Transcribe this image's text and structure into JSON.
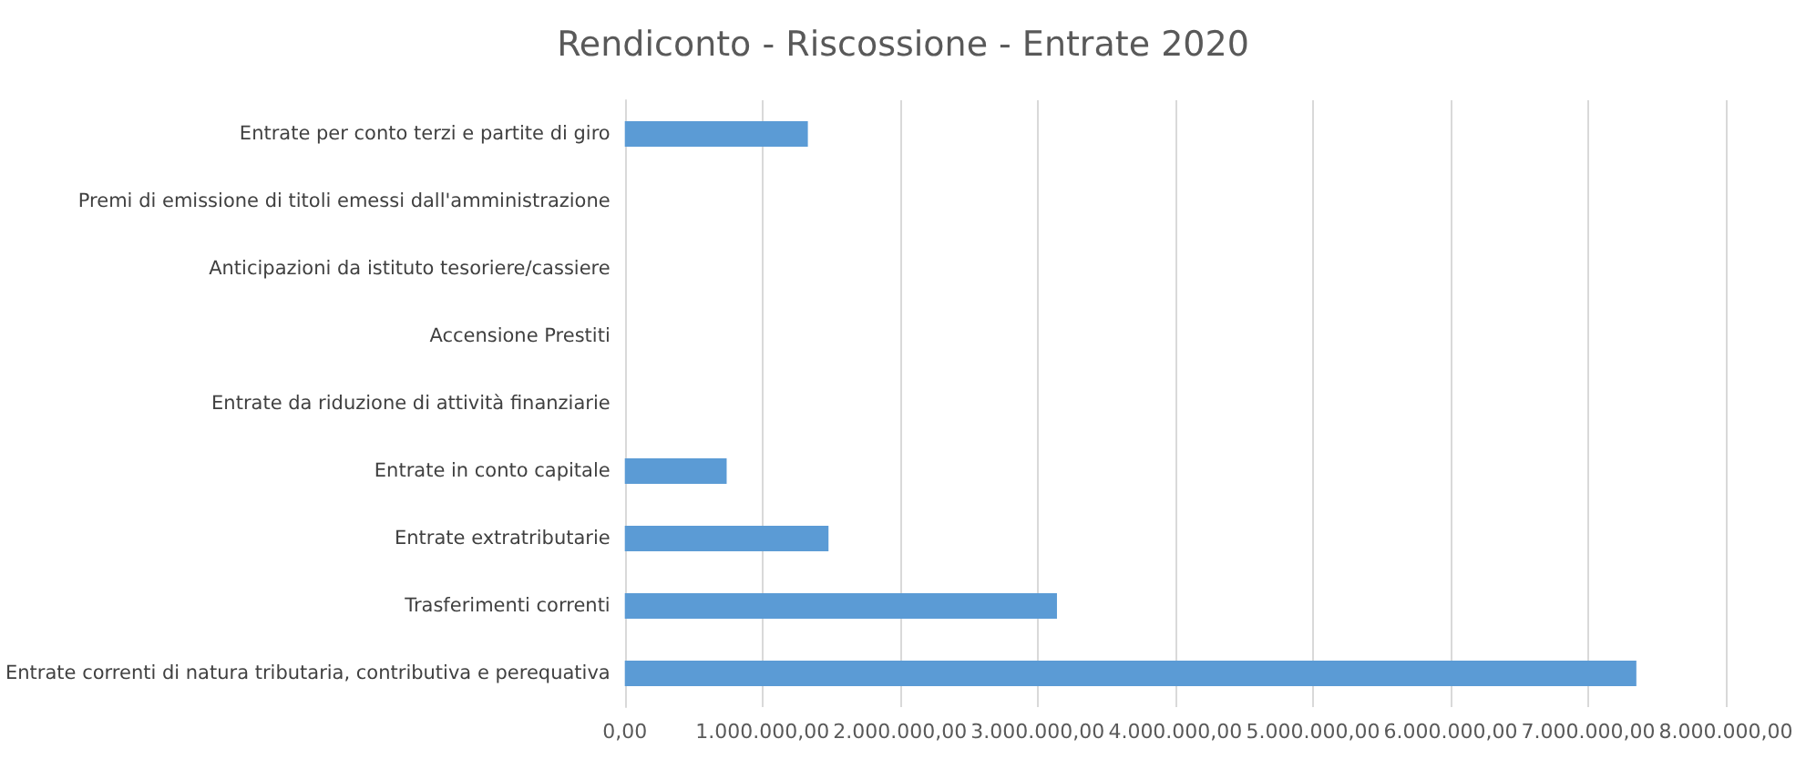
{
  "chart_data": {
    "type": "bar",
    "orientation": "horizontal",
    "title": "Rendiconto - Riscossione - Entrate 2020",
    "categories": [
      "Entrate per conto terzi e partite di giro",
      "Premi di emissione di titoli emessi dall'amministrazione",
      "Anticipazioni da istituto tesoriere/cassiere",
      "Accensione Prestiti",
      "Entrate da riduzione di attività finanziarie",
      "Entrate in conto capitale",
      "Entrate extratributarie",
      "Trasferimenti correnti",
      "Entrate correnti di natura tributaria, contributiva e perequativa"
    ],
    "values": [
      1330000,
      0,
      0,
      0,
      0,
      740000,
      1480000,
      3140000,
      7350000
    ],
    "color": "#5b9bd5",
    "xlim": [
      0,
      8000000
    ],
    "xticks": [
      {
        "value": 0,
        "label": "0,00"
      },
      {
        "value": 1000000,
        "label": "1.000.000,00"
      },
      {
        "value": 2000000,
        "label": "2.000.000,00"
      },
      {
        "value": 3000000,
        "label": "3.000.000,00"
      },
      {
        "value": 4000000,
        "label": "4.000.000,00"
      },
      {
        "value": 5000000,
        "label": "5.000.000,00"
      },
      {
        "value": 6000000,
        "label": "6.000.000,00"
      },
      {
        "value": 7000000,
        "label": "7.000.000,00"
      },
      {
        "value": 8000000,
        "label": "8.000.000,00"
      }
    ],
    "grid": "x"
  }
}
